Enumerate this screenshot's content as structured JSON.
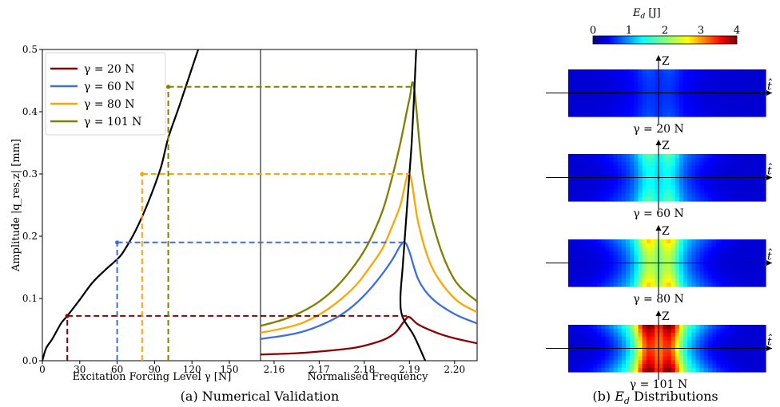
{
  "chart_data": [
    {
      "type": "line",
      "panel": "(a) left",
      "xlabel": "Excitation Forcing Level γ [N]",
      "ylabel": "Amplitude |q_res,z| [mm]",
      "xlim": [
        0,
        175
      ],
      "ylim": [
        0.0,
        0.5
      ],
      "x_ticks": [
        0,
        30,
        60,
        90,
        120,
        150
      ],
      "y_ticks": [
        0.0,
        0.1,
        0.2,
        0.3,
        0.4,
        0.5
      ],
      "backbone": {
        "color": "#000000",
        "x": [
          0,
          3,
          8,
          15,
          20,
          30,
          40,
          50,
          60,
          65,
          75,
          85,
          95,
          101,
          110,
          120,
          130
        ],
        "y": [
          0.0,
          0.02,
          0.035,
          0.06,
          0.072,
          0.098,
          0.125,
          0.145,
          0.163,
          0.175,
          0.21,
          0.255,
          0.31,
          0.358,
          0.41,
          0.47,
          0.53
        ]
      },
      "operating_points": [
        {
          "gamma": 20,
          "amplitude": 0.072
        },
        {
          "gamma": 60,
          "amplitude": 0.19
        },
        {
          "gamma": 80,
          "amplitude": 0.3
        },
        {
          "gamma": 101,
          "amplitude": 0.44
        }
      ],
      "legend": {
        "placement": "top-left",
        "entries": [
          {
            "label": "γ = 20 N",
            "color": "#8b0000"
          },
          {
            "label": "γ = 60 N",
            "color": "#3a6fdc"
          },
          {
            "label": "γ = 80 N",
            "color": "#ffa500"
          },
          {
            "label": "γ = 101 N",
            "color": "#808000"
          }
        ]
      }
    },
    {
      "type": "line",
      "panel": "(a) right",
      "xlabel": "Normalised Frequency",
      "xlim": [
        2.157,
        2.205
      ],
      "ylim": [
        0.0,
        0.5
      ],
      "x_ticks": [
        2.16,
        2.17,
        2.18,
        2.19,
        2.2
      ],
      "x_tick_labels": [
        "2.16",
        "2.17",
        "2.18",
        "2.19",
        "2.20"
      ],
      "backbone": {
        "color": "#000000",
        "x": [
          2.1935,
          2.191,
          2.1885,
          2.188,
          2.1885,
          2.189,
          2.1895,
          2.19,
          2.1905,
          2.191,
          2.1915
        ],
        "y": [
          0.0,
          0.04,
          0.07,
          0.1,
          0.15,
          0.2,
          0.25,
          0.3,
          0.35,
          0.42,
          0.5
        ]
      },
      "series": [
        {
          "name": "γ = 20 N",
          "color": "#8b0000",
          "x": [
            2.157,
            2.165,
            2.172,
            2.178,
            2.182,
            2.185,
            2.187,
            2.189,
            2.19,
            2.192,
            2.196,
            2.2,
            2.205
          ],
          "y": [
            0.01,
            0.012,
            0.016,
            0.021,
            0.028,
            0.036,
            0.046,
            0.065,
            0.07,
            0.058,
            0.045,
            0.036,
            0.028
          ]
        },
        {
          "name": "γ = 60 N",
          "color": "#3a6fdc",
          "x": [
            2.157,
            2.162,
            2.166,
            2.17,
            2.174,
            2.177,
            2.18,
            2.183,
            2.186,
            2.188,
            2.189,
            2.19,
            2.192,
            2.195,
            2.2,
            2.205
          ],
          "y": [
            0.035,
            0.04,
            0.046,
            0.056,
            0.07,
            0.085,
            0.105,
            0.13,
            0.16,
            0.185,
            0.19,
            0.175,
            0.13,
            0.1,
            0.075,
            0.06
          ]
        },
        {
          "name": "γ = 80 N",
          "color": "#ffa500",
          "x": [
            2.157,
            2.162,
            2.166,
            2.17,
            2.174,
            2.178,
            2.181,
            2.184,
            2.186,
            2.188,
            2.19,
            2.192,
            2.195,
            2.2,
            2.205
          ],
          "y": [
            0.045,
            0.052,
            0.06,
            0.074,
            0.094,
            0.12,
            0.148,
            0.18,
            0.213,
            0.25,
            0.3,
            0.22,
            0.15,
            0.1,
            0.078
          ]
        },
        {
          "name": "γ = 101 N",
          "color": "#808000",
          "x": [
            2.157,
            2.162,
            2.166,
            2.17,
            2.174,
            2.178,
            2.181,
            2.184,
            2.186,
            2.188,
            2.19,
            2.191,
            2.193,
            2.196,
            2.2,
            2.205
          ],
          "y": [
            0.056,
            0.066,
            0.078,
            0.095,
            0.12,
            0.155,
            0.19,
            0.24,
            0.29,
            0.35,
            0.42,
            0.44,
            0.3,
            0.2,
            0.13,
            0.095
          ]
        }
      ],
      "peak_frequencies": [
        2.19,
        2.189,
        2.19,
        2.191
      ]
    },
    {
      "type": "heatmap",
      "panel": "(b)",
      "colorbar": {
        "label": "E_d [J]",
        "range": [
          0,
          4
        ],
        "ticks": [
          "0",
          "1",
          "2",
          "3",
          "4"
        ],
        "colormap": "jet"
      },
      "axis_labels": {
        "vertical": "Z",
        "horizontal": "t̂"
      },
      "subplots": [
        {
          "label": "γ = 20 N",
          "peak_level": 0.5
        },
        {
          "label": "γ = 60 N",
          "peak_level": 1.6
        },
        {
          "label": "γ = 80 N",
          "peak_level": 2.5
        },
        {
          "label": "γ = 101 N",
          "peak_level": 4.0
        }
      ]
    }
  ],
  "captions": {
    "a": "(a) Numerical Validation",
    "b": "(b) ",
    "b_symbol": "E",
    "b_sub": "d",
    "b_rest": " Distributions"
  }
}
